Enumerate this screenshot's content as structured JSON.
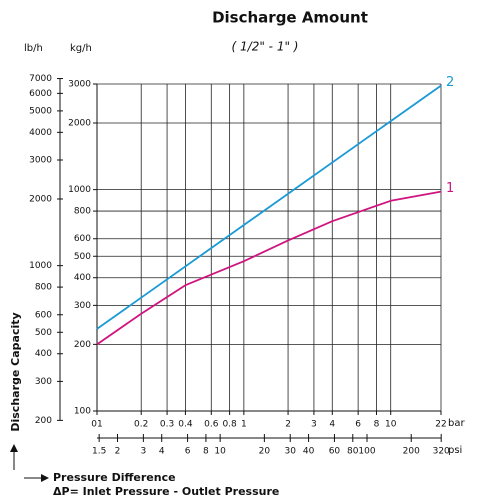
{
  "chart_data": {
    "type": "line",
    "title": "Discharge Amount",
    "subtitle": "( 1/2\" - 1\" )",
    "y_label_left": "lb/h",
    "y_label": "kg/h",
    "x_unit": "bar",
    "x2_unit": "psi",
    "y_axis_title": "Discharge Capacity",
    "x_axis_title": "Pressure Difference",
    "x_axis_note": "ΔP= Inlet Pressure - Outlet Pressure",
    "x_log": true,
    "y_log": true,
    "grid": true,
    "xlim": [
      0.1,
      22
    ],
    "xticks": [
      {
        "value": 0.1,
        "label": "01"
      },
      0.2,
      0.3,
      0.4,
      0.6,
      0.8,
      1,
      2,
      3,
      4,
      6,
      8,
      10,
      22
    ],
    "x2lim": [
      1.45,
      319
    ],
    "x2ticks": [
      1.5,
      2,
      3,
      4,
      6,
      8,
      10,
      20,
      30,
      40,
      60,
      80,
      100,
      200,
      320
    ],
    "ylim": [
      100,
      3000
    ],
    "yticks": [
      100,
      200,
      300,
      400,
      500,
      600,
      800,
      1000,
      2000,
      3000
    ],
    "y2lim": [
      220.5,
      6614
    ],
    "y2ticks": [
      200,
      300,
      400,
      500,
      600,
      800,
      1000,
      2000,
      3000,
      4000,
      5000,
      6000,
      7000
    ],
    "series": [
      {
        "name": "1",
        "color": "#d0147f",
        "x": [
          0.1,
          0.2,
          0.4,
          1,
          2,
          4,
          10,
          22
        ],
        "values": [
          200,
          275,
          370,
          475,
          590,
          720,
          890,
          980
        ]
      },
      {
        "name": "2",
        "color": "#1a9ad6",
        "x": [
          0.1,
          22
        ],
        "values": [
          235,
          2950
        ]
      }
    ]
  }
}
